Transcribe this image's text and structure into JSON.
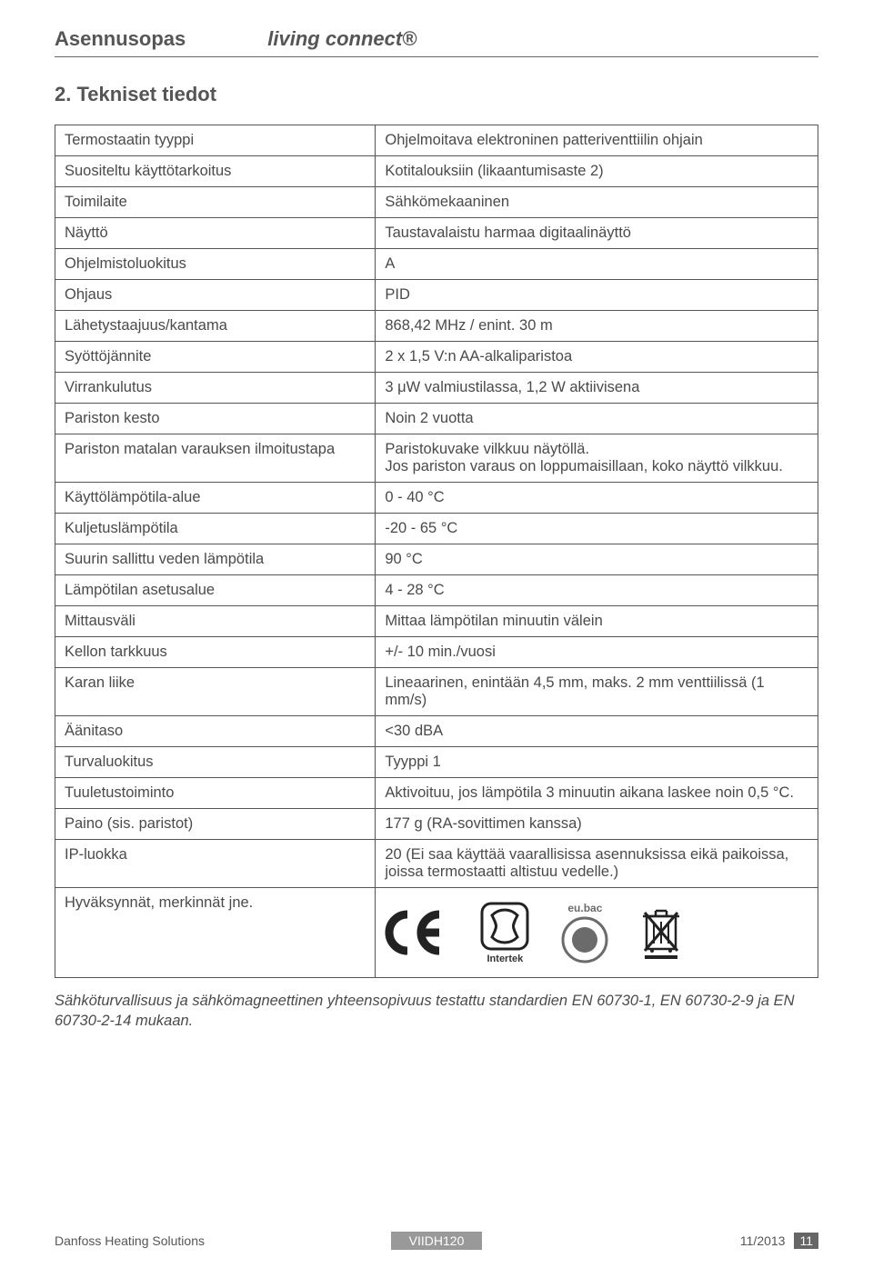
{
  "header": {
    "left": "Asennusopas",
    "right": "living connect®"
  },
  "section_title": "2. Tekniset tiedot",
  "table": {
    "rows": [
      {
        "label": "Termostaatin tyyppi",
        "value": "Ohjelmoitava elektroninen patteriventtiilin ohjain"
      },
      {
        "label": "Suositeltu käyttötarkoitus",
        "value": "Kotitalouksiin (likaantumisaste 2)"
      },
      {
        "label": "Toimilaite",
        "value": "Sähkömekaaninen"
      },
      {
        "label": "Näyttö",
        "value": "Taustavalaistu harmaa digitaalinäyttö"
      },
      {
        "label": "Ohjelmistoluokitus",
        "value": "A"
      },
      {
        "label": "Ohjaus",
        "value": "PID"
      },
      {
        "label": "Lähetystaajuus/kantama",
        "value": "868,42 MHz / enint. 30 m"
      },
      {
        "label": "Syöttöjännite",
        "value": "2 x 1,5 V:n AA-alkaliparistoa"
      },
      {
        "label": "Virrankulutus",
        "value": "3 μW valmiustilassa, 1,2 W aktiivisena"
      },
      {
        "label": "Pariston kesto",
        "value": "Noin 2 vuotta"
      },
      {
        "label": "Pariston matalan varauksen ilmoitustapa",
        "value": "Paristokuvake vilkkuu näytöllä.\nJos pariston varaus on loppumaisillaan, koko näyttö vilkkuu."
      },
      {
        "label": "Käyttölämpötila-alue",
        "value": "0 - 40 °C"
      },
      {
        "label": "Kuljetuslämpötila",
        "value": "-20 - 65 °C"
      },
      {
        "label": "Suurin sallittu veden lämpötila",
        "value": "90 °C"
      },
      {
        "label": "Lämpötilan asetusalue",
        "value": "4 - 28 °C"
      },
      {
        "label": "Mittausväli",
        "value": "Mittaa lämpötilan minuutin välein"
      },
      {
        "label": "Kellon tarkkuus",
        "value": "+/- 10 min./vuosi"
      },
      {
        "label": "Karan liike",
        "value": "Lineaarinen, enintään 4,5 mm, maks. 2 mm venttiilissä (1 mm/s)"
      },
      {
        "label": "Äänitaso",
        "value": "<30 dBA"
      },
      {
        "label": "Turvaluokitus",
        "value": "Tyyppi 1"
      },
      {
        "label": "Tuuletustoiminto",
        "value": "Aktivoituu, jos lämpötila 3 minuutin aikana laskee noin 0,5 °C."
      },
      {
        "label": "Paino (sis. paristot)",
        "value": "177 g (RA-sovittimen kanssa)"
      },
      {
        "label": "IP-luokka",
        "value": "20 (Ei saa käyttää vaarallisissa asennuksissa eikä paikoissa, joissa termostaatti altistuu vedelle.)"
      }
    ],
    "approvals_label": "Hyväksynnät, merkinnät jne."
  },
  "icons": {
    "eubac_label": "eu.bac",
    "intertek_label": "Intertek"
  },
  "footnote": "Sähköturvallisuus ja sähkömagneettinen yhteensopivuus testattu standardien EN 60730-1, EN 60730-2-9 ja EN 60730-2-14 mukaan.",
  "footer": {
    "left": "Danfoss Heating Solutions",
    "center": "VIIDH120",
    "date": "11/2013",
    "page": "11"
  },
  "colors": {
    "text": "#4a4a4a",
    "border": "#555555",
    "footer_center_bg": "#999999",
    "page_bg": "#666666"
  }
}
